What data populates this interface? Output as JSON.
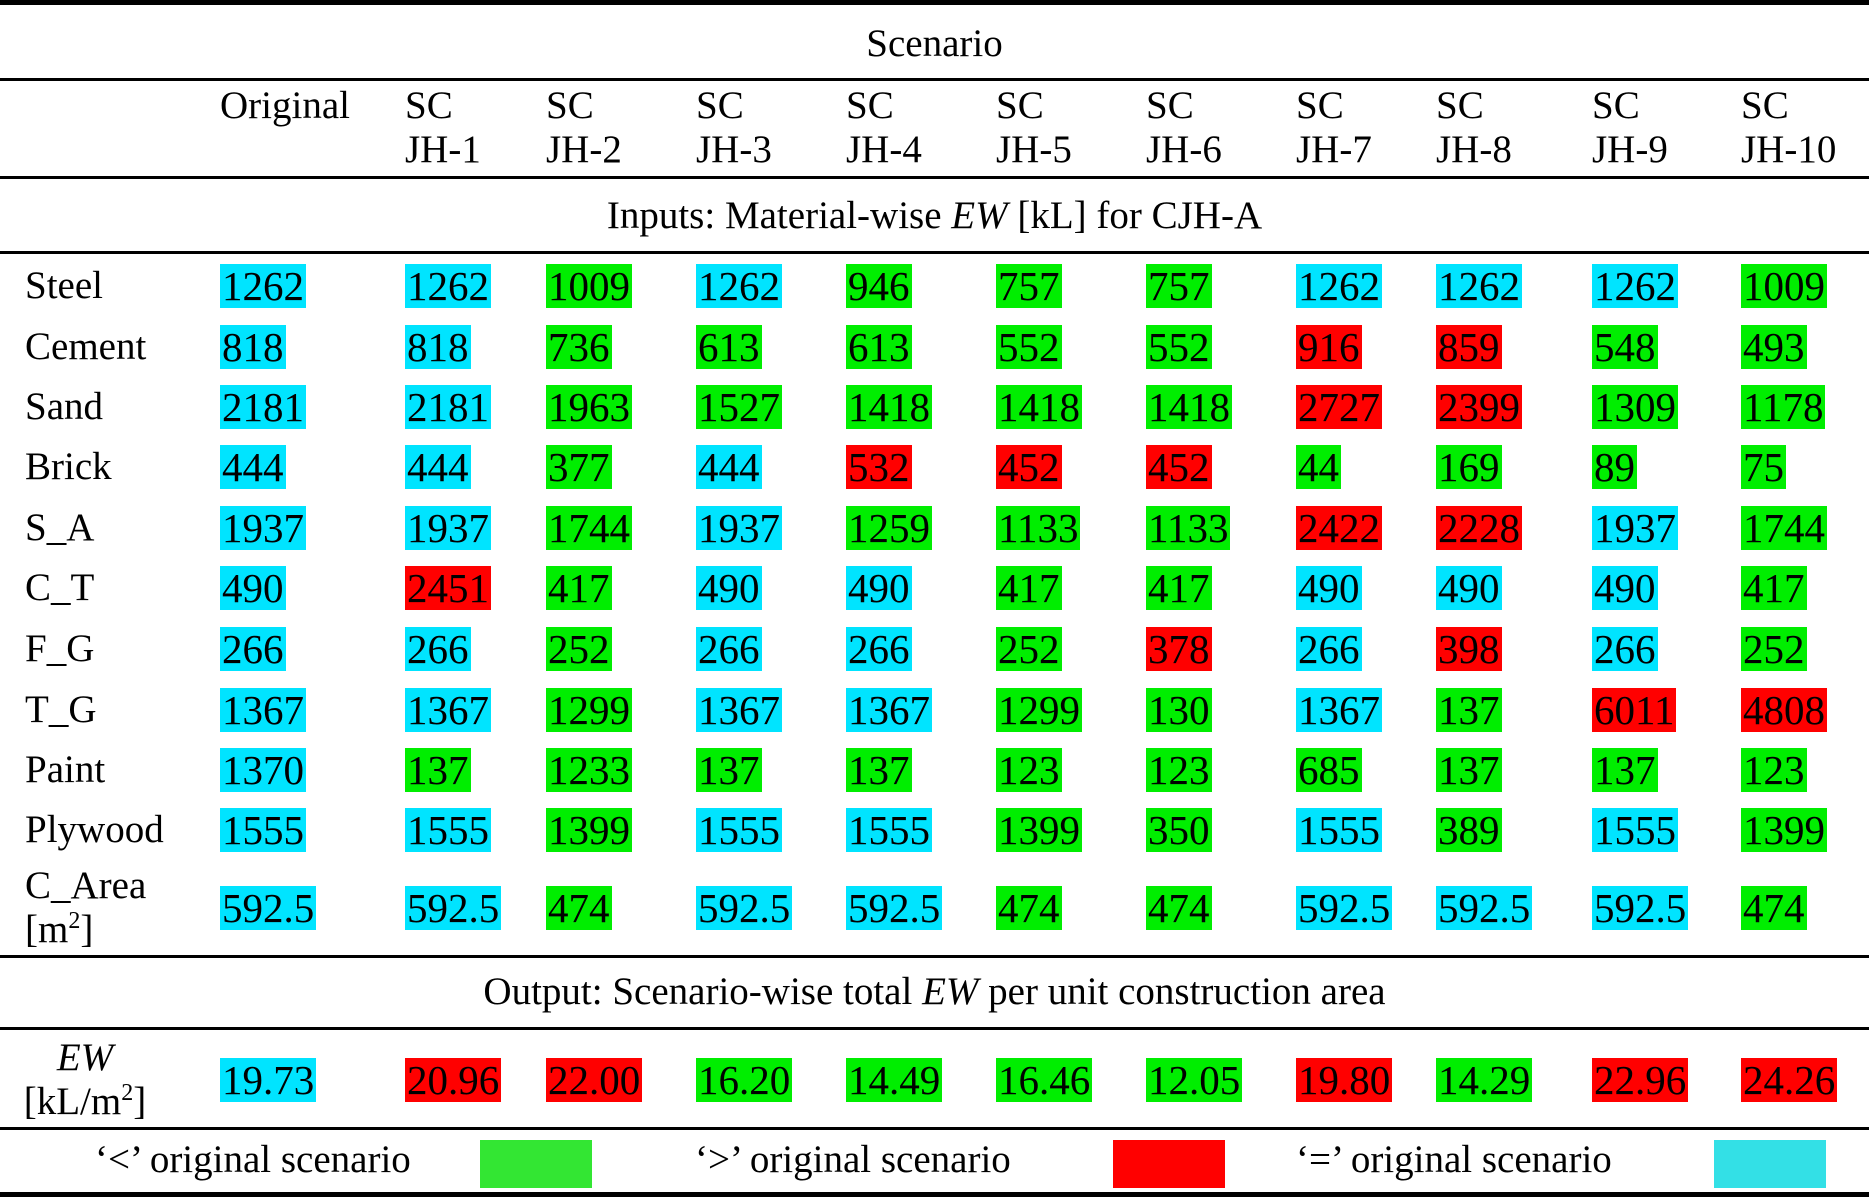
{
  "title": "Scenario",
  "columns": [
    "Original",
    "SC\nJH-1",
    "SC\nJH-2",
    "SC\nJH-3",
    "SC\nJH-4",
    "SC\nJH-5",
    "SC\nJH-6",
    "SC\nJH-7",
    "SC\nJH-8",
    "SC\nJH-9",
    "SC\nJH-10"
  ],
  "inputs_heading": {
    "pre": "Inputs: Material-wise ",
    "em": "EW",
    "post": " [kL] for CJH-A"
  },
  "rows": [
    {
      "label": "Steel",
      "values": [
        "1262",
        "1262",
        "1009",
        "1262",
        "946",
        "757",
        "757",
        "1262",
        "1262",
        "1262",
        "1009"
      ],
      "status": [
        "eq",
        "eq",
        "lt",
        "eq",
        "lt",
        "lt",
        "lt",
        "eq",
        "eq",
        "eq",
        "lt"
      ]
    },
    {
      "label": "Cement",
      "values": [
        "818",
        "818",
        "736",
        "613",
        "613",
        "552",
        "552",
        "916",
        "859",
        "548",
        "493"
      ],
      "status": [
        "eq",
        "eq",
        "lt",
        "lt",
        "lt",
        "lt",
        "lt",
        "gt",
        "gt",
        "lt",
        "lt"
      ]
    },
    {
      "label": "Sand",
      "values": [
        "2181",
        "2181",
        "1963",
        "1527",
        "1418",
        "1418",
        "1418",
        "2727",
        "2399",
        "1309",
        "1178"
      ],
      "status": [
        "eq",
        "eq",
        "lt",
        "lt",
        "lt",
        "lt",
        "lt",
        "gt",
        "gt",
        "lt",
        "lt"
      ]
    },
    {
      "label": "Brick",
      "values": [
        "444",
        "444",
        "377",
        "444",
        "532",
        "452",
        "452",
        "44",
        "169",
        "89",
        "75"
      ],
      "status": [
        "eq",
        "eq",
        "lt",
        "eq",
        "gt",
        "gt",
        "gt",
        "lt",
        "lt",
        "lt",
        "lt"
      ]
    },
    {
      "label": "S_A",
      "values": [
        "1937",
        "1937",
        "1744",
        "1937",
        "1259",
        "1133",
        "1133",
        "2422",
        "2228",
        "1937",
        "1744"
      ],
      "status": [
        "eq",
        "eq",
        "lt",
        "eq",
        "lt",
        "lt",
        "lt",
        "gt",
        "gt",
        "eq",
        "lt"
      ]
    },
    {
      "label": "C_T",
      "values": [
        "490",
        "2451",
        "417",
        "490",
        "490",
        "417",
        "417",
        "490",
        "490",
        "490",
        "417"
      ],
      "status": [
        "eq",
        "gt",
        "lt",
        "eq",
        "eq",
        "lt",
        "lt",
        "eq",
        "eq",
        "eq",
        "lt"
      ]
    },
    {
      "label": "F_G",
      "values": [
        "266",
        "266",
        "252",
        "266",
        "266",
        "252",
        "378",
        "266",
        "398",
        "266",
        "252"
      ],
      "status": [
        "eq",
        "eq",
        "lt",
        "eq",
        "eq",
        "lt",
        "gt",
        "eq",
        "gt",
        "eq",
        "lt"
      ]
    },
    {
      "label": "T_G",
      "values": [
        "1367",
        "1367",
        "1299",
        "1367",
        "1367",
        "1299",
        "130",
        "1367",
        "137",
        "6011",
        "4808"
      ],
      "status": [
        "eq",
        "eq",
        "lt",
        "eq",
        "eq",
        "lt",
        "lt",
        "eq",
        "lt",
        "gt",
        "gt"
      ]
    },
    {
      "label": "Paint",
      "values": [
        "1370",
        "137",
        "1233",
        "137",
        "137",
        "123",
        "123",
        "685",
        "137",
        "137",
        "123"
      ],
      "status": [
        "eq",
        "lt",
        "lt",
        "lt",
        "lt",
        "lt",
        "lt",
        "lt",
        "lt",
        "lt",
        "lt"
      ]
    },
    {
      "label": "Plywood",
      "values": [
        "1555",
        "1555",
        "1399",
        "1555",
        "1555",
        "1399",
        "350",
        "1555",
        "389",
        "1555",
        "1399"
      ],
      "status": [
        "eq",
        "eq",
        "lt",
        "eq",
        "eq",
        "lt",
        "lt",
        "eq",
        "lt",
        "eq",
        "lt"
      ]
    }
  ],
  "area_row": {
    "label_line1": "C_Area",
    "label_line2_pre": "[m",
    "label_line2_sup": "2",
    "label_line2_post": "]",
    "values": [
      "592.5",
      "592.5",
      "474",
      "592.5",
      "592.5",
      "474",
      "474",
      "592.5",
      "592.5",
      "592.5",
      "474"
    ],
    "status": [
      "eq",
      "eq",
      "lt",
      "eq",
      "eq",
      "lt",
      "lt",
      "eq",
      "eq",
      "eq",
      "lt"
    ]
  },
  "output_heading": {
    "pre": "Output: Scenario-wise total ",
    "em": "EW",
    "post": " per unit construction area"
  },
  "output_row": {
    "label_line1": "EW",
    "label_line2_pre": "[kL/m",
    "label_line2_sup": "2",
    "label_line2_post": "]",
    "values": [
      "19.73",
      "20.96",
      "22.00",
      "16.20",
      "14.49",
      "16.46",
      "12.05",
      "19.80",
      "14.29",
      "22.96",
      "24.26"
    ],
    "status": [
      "eq",
      "gt",
      "gt",
      "lt",
      "lt",
      "lt",
      "lt",
      "gt",
      "lt",
      "gt",
      "gt"
    ]
  },
  "legend": {
    "lt_label": "‘<’ original scenario",
    "gt_label": "‘>’ original scenario",
    "eq_label": "‘=’ original scenario",
    "lt_color": "#33e633",
    "gt_color": "#ff0000",
    "eq_color": "#33e0e6"
  }
}
